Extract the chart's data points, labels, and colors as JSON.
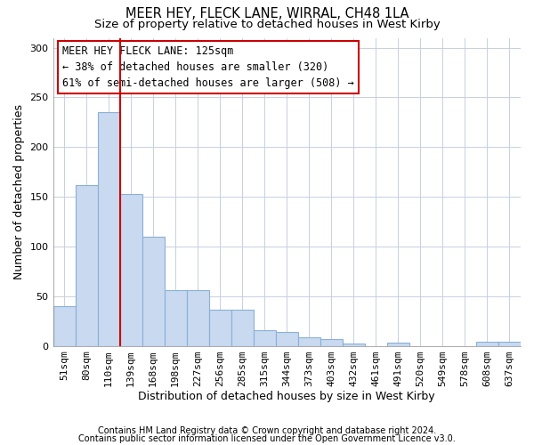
{
  "title1": "MEER HEY, FLECK LANE, WIRRAL, CH48 1LA",
  "title2": "Size of property relative to detached houses in West Kirby",
  "xlabel": "Distribution of detached houses by size in West Kirby",
  "ylabel": "Number of detached properties",
  "categories": [
    "51sqm",
    "80sqm",
    "110sqm",
    "139sqm",
    "168sqm",
    "198sqm",
    "227sqm",
    "256sqm",
    "285sqm",
    "315sqm",
    "344sqm",
    "373sqm",
    "403sqm",
    "432sqm",
    "461sqm",
    "491sqm",
    "520sqm",
    "549sqm",
    "578sqm",
    "608sqm",
    "637sqm"
  ],
  "values": [
    40,
    162,
    235,
    153,
    110,
    56,
    56,
    36,
    36,
    16,
    14,
    9,
    7,
    2,
    0,
    3,
    0,
    0,
    0,
    4,
    4
  ],
  "bar_color": "#c8d9f0",
  "bar_edge_color": "#8ab0d8",
  "vline_x_index": 3,
  "vline_color": "#cc0000",
  "annotation_text": "MEER HEY FLECK LANE: 125sqm\n← 38% of detached houses are smaller (320)\n61% of semi-detached houses are larger (508) →",
  "annotation_box_color": "#ffffff",
  "annotation_box_edge": "#cc0000",
  "footnote1": "Contains HM Land Registry data © Crown copyright and database right 2024.",
  "footnote2": "Contains public sector information licensed under the Open Government Licence v3.0.",
  "ylim": [
    0,
    310
  ],
  "yticks": [
    0,
    50,
    100,
    150,
    200,
    250,
    300
  ],
  "bg_color": "#ffffff",
  "plot_bg_color": "#ffffff",
  "title_fontsize": 10.5,
  "subtitle_fontsize": 9.5,
  "tick_fontsize": 8,
  "ylabel_fontsize": 9,
  "xlabel_fontsize": 9,
  "footnote_fontsize": 7,
  "annot_fontsize": 8.5
}
